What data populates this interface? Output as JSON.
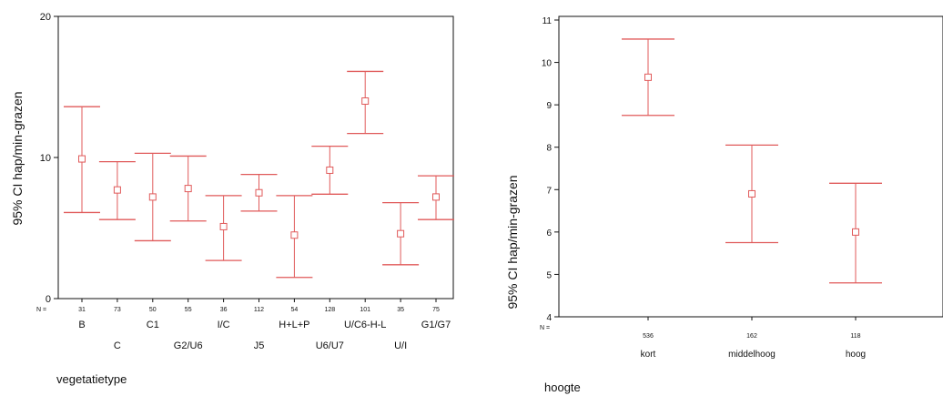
{
  "chart_data": [
    {
      "type": "errorbar",
      "ylabel": "95% CI hap/min-grazen",
      "xlabel": "vegetatietype",
      "n_label": "N =",
      "ylim": [
        0,
        20
      ],
      "yticks": [
        "0",
        "10",
        "20"
      ],
      "grid": false,
      "color": "#e05a5a",
      "categories": [
        "B",
        "C",
        "C1",
        "G2/U6",
        "I/C",
        "J5",
        "H+L+P",
        "U6/U7",
        "U/C6-H-L",
        "U/I",
        "G1/G7"
      ],
      "n": [
        "31",
        "73",
        "50",
        "55",
        "36",
        "112",
        "54",
        "128",
        "101",
        "35",
        "75"
      ],
      "mean": [
        9.9,
        7.7,
        7.2,
        7.8,
        5.1,
        7.5,
        4.5,
        9.1,
        14.0,
        4.6,
        7.2
      ],
      "lower": [
        6.1,
        5.6,
        4.1,
        5.5,
        2.7,
        6.2,
        1.5,
        7.4,
        11.7,
        2.4,
        5.6
      ],
      "upper": [
        13.6,
        9.7,
        10.3,
        10.1,
        7.3,
        8.8,
        7.3,
        10.8,
        16.1,
        6.8,
        8.7
      ]
    },
    {
      "type": "errorbar",
      "ylabel": "95% CI hap/min-grazen",
      "xlabel": "hoogte",
      "n_label": "N =",
      "ylim": [
        4,
        11
      ],
      "yticks": [
        "4",
        "5",
        "6",
        "7",
        "8",
        "9",
        "10",
        "11"
      ],
      "grid": false,
      "color": "#e05a5a",
      "categories": [
        "kort",
        "middelhoog",
        "hoog"
      ],
      "n": [
        "536",
        "162",
        "118"
      ],
      "mean": [
        9.65,
        6.9,
        6.0
      ],
      "lower": [
        8.75,
        5.75,
        4.8
      ],
      "upper": [
        10.55,
        8.05,
        7.15
      ]
    }
  ]
}
